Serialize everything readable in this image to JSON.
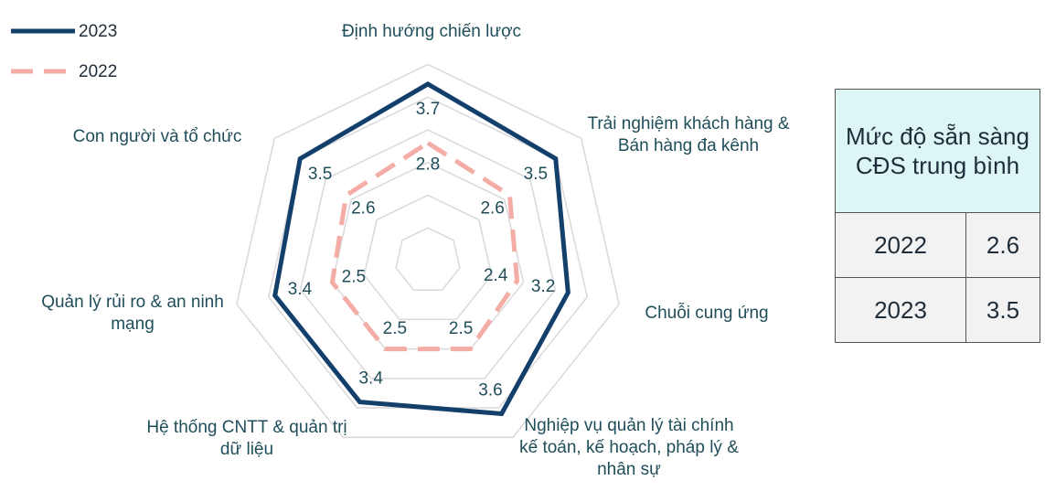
{
  "chart_data": {
    "type": "radar",
    "categories": [
      "Định hướng chiến lược",
      "Trải nghiệm khách hàng & Bán hàng đa kênh",
      "Chuỗi cung ứng",
      "Nghiệp vụ quản lý tài chính kế toán, kế hoạch, pháp lý & nhân sự",
      "Hệ thống CNTT & quản trị dữ liệu",
      "Quản lý rủi ro & an ninh mạng",
      "Con người và tổ chức"
    ],
    "series": [
      {
        "name": "2023",
        "color": "#133f6b",
        "dashed": false,
        "values": [
          3.7,
          3.5,
          3.2,
          3.6,
          3.4,
          3.4,
          3.5
        ]
      },
      {
        "name": "2022",
        "color": "#f4aca6",
        "dashed": true,
        "values": [
          2.8,
          2.6,
          2.4,
          2.5,
          2.5,
          2.5,
          2.6
        ]
      }
    ],
    "rlim": [
      1,
      4
    ],
    "rticks": [
      1.5,
      2,
      2.5,
      3,
      3.5,
      4
    ],
    "grid": true,
    "legend": "top-left"
  },
  "table": {
    "header": "Mức độ sẵn sàng CĐS trung bình",
    "rows": [
      [
        "2022",
        "2.6"
      ],
      [
        "2023",
        "3.5"
      ]
    ]
  }
}
